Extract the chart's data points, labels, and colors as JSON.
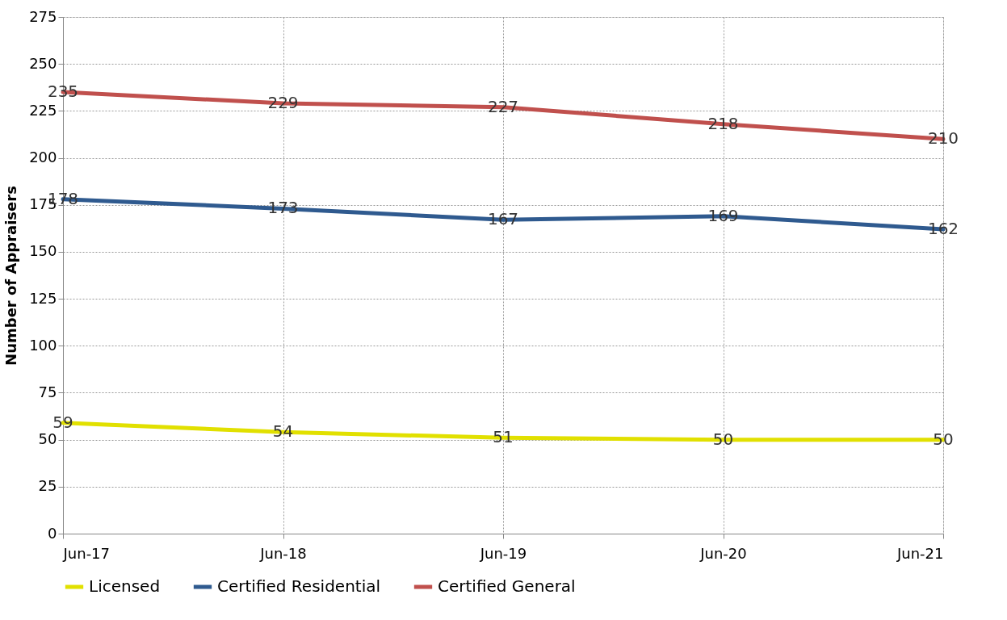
{
  "chart_data": {
    "type": "line",
    "ylabel": "Number of Appraisers",
    "categories": [
      "Jun-17",
      "Jun-18",
      "Jun-19",
      "Jun-20",
      "Jun-21"
    ],
    "series": [
      {
        "name": "Licensed",
        "color": "#e1e000",
        "values": [
          59,
          54,
          51,
          50,
          50
        ]
      },
      {
        "name": "Certified Residential",
        "color": "#2f5a8f",
        "values": [
          178,
          173,
          167,
          169,
          162
        ]
      },
      {
        "name": "Certified General",
        "color": "#c0504d",
        "values": [
          235,
          229,
          227,
          218,
          210
        ]
      }
    ],
    "ylim": [
      0,
      275
    ],
    "yticks": [
      0,
      25,
      50,
      75,
      100,
      125,
      150,
      175,
      200,
      225,
      250,
      275
    ],
    "grid": true,
    "legend": "bottom",
    "data_labels": true,
    "marker": "none",
    "line_style": "solid"
  }
}
